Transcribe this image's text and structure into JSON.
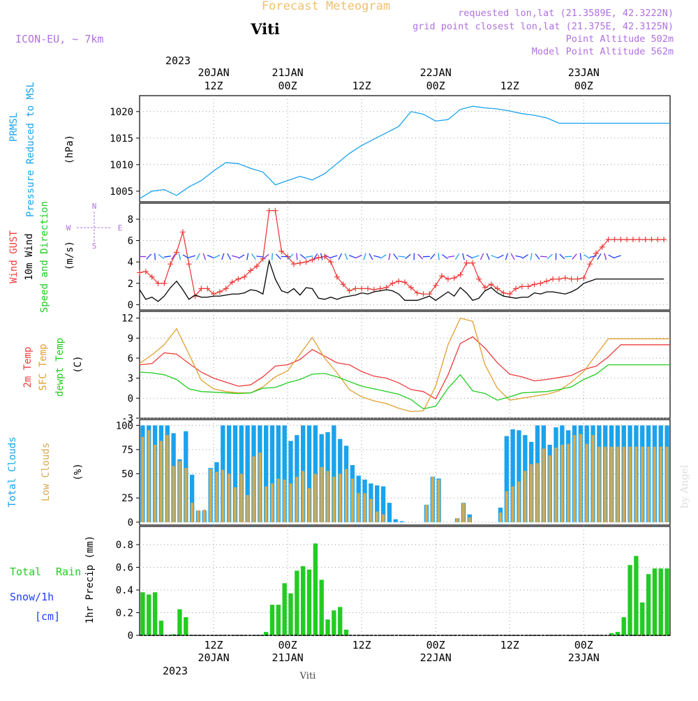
{
  "header": {
    "title": "Forecast Meteogram",
    "location": "Viti",
    "model": "ICON-EU, ~ 7km",
    "requested": "requested lon,lat (21.3589E, 42.3222N)",
    "grid_point": "grid point closest lon,lat (21.375E, 42.3125N)",
    "point_altitude": "Point Altitude 502m",
    "model_altitude": "Model Point Altitude 562m"
  },
  "time_axis": {
    "top_year": "2023",
    "bottom_year": "2023",
    "footer": "Viti",
    "watermark": "by Angel",
    "ticks": [
      {
        "h": 12,
        "line1": "12Z",
        "line2": "20JAN"
      },
      {
        "h": 24,
        "line1": "00Z",
        "line2": "21JAN"
      },
      {
        "h": 36,
        "line1": "12Z",
        "line2": ""
      },
      {
        "h": 48,
        "line1": "00Z",
        "line2": "22JAN"
      },
      {
        "h": 60,
        "line1": "12Z",
        "line2": ""
      },
      {
        "h": 72,
        "line1": "00Z",
        "line2": "23JAN"
      }
    ]
  },
  "compass": {
    "n": "N",
    "s": "S",
    "w": "W",
    "e": "E"
  },
  "colors": {
    "pressure": "#1aa3ec",
    "gust": "#ee3c3c",
    "wind": "#000000",
    "arrows": "#1e3cff",
    "temp2m": "#ee3c3c",
    "sfc": "#e0a030",
    "dewpt": "#22cc22",
    "total_clouds": "#1aa3ec",
    "low_clouds": "#d4aa50",
    "rain": "#22cc22",
    "snow": "#1e3cff",
    "grid": "#999999"
  },
  "chart_data": [
    {
      "type": "line",
      "panel": "pressure",
      "labels": [
        "PRMSL",
        "Pressure Reduced to MSL",
        "(hPa)"
      ],
      "ylim": [
        1003,
        1023
      ],
      "yticks": [
        1005,
        1010,
        1015,
        1020
      ],
      "x": [
        0,
        2,
        4,
        6,
        8,
        10,
        12,
        14,
        16,
        18,
        20,
        22,
        24,
        26,
        28,
        30,
        32,
        34,
        36,
        38,
        40,
        42,
        44,
        46,
        48,
        50,
        52,
        54,
        56,
        58,
        60,
        62,
        64,
        66,
        68,
        70,
        72,
        74,
        76,
        78,
        80,
        82,
        84,
        86
      ],
      "series": [
        {
          "values": [
            1003.6,
            1005.0,
            1005.3,
            1004.2,
            1005.8,
            1007.0,
            1008.8,
            1010.4,
            1010.2,
            1009.3,
            1008.6,
            1006.2,
            1007.0,
            1007.8,
            1007.1,
            1008.3,
            1010.2,
            1012.1,
            1013.6,
            1014.8,
            1016.0,
            1017.2,
            1020.0,
            1019.5,
            1018.2,
            1018.5,
            1020.4,
            1021.0,
            1020.7,
            1020.5,
            1020.1,
            1019.6,
            1019.3,
            1018.8,
            1017.8,
            1017.8,
            1017.8,
            1017.8,
            1017.8,
            1017.8,
            1017.8,
            1017.8,
            1017.8,
            1017.8
          ]
        }
      ]
    },
    {
      "type": "line",
      "panel": "wind",
      "labels": [
        "Wind GUST",
        "10m Wind",
        "Speed and Direction",
        "(m/s)"
      ],
      "ylim": [
        -0.5,
        9.5
      ],
      "yticks": [
        0,
        2,
        4,
        6,
        8
      ],
      "x": [
        0,
        1,
        2,
        3,
        4,
        5,
        6,
        7,
        8,
        9,
        10,
        11,
        12,
        13,
        14,
        15,
        16,
        17,
        18,
        19,
        20,
        21,
        22,
        23,
        24,
        25,
        26,
        27,
        28,
        29,
        30,
        31,
        32,
        33,
        34,
        35,
        36,
        37,
        38,
        39,
        40,
        41,
        42,
        43,
        44,
        45,
        46,
        47,
        48,
        49,
        50,
        51,
        52,
        53,
        54,
        55,
        56,
        57,
        58,
        59,
        60,
        61,
        62,
        63,
        64,
        65,
        66,
        67,
        68,
        69,
        70,
        71,
        72,
        73,
        74,
        75,
        76,
        77,
        78,
        79,
        80,
        81,
        82,
        83,
        84,
        85
      ],
      "series": [
        {
          "name": "Wind GUST",
          "values": [
            3.0,
            3.1,
            2.6,
            2.0,
            2.0,
            3.8,
            4.9,
            6.8,
            3.8,
            0.8,
            1.5,
            1.5,
            1.0,
            1.2,
            1.5,
            2.1,
            2.4,
            2.6,
            3.2,
            3.6,
            4.3,
            8.8,
            8.8,
            5.0,
            4.5,
            3.8,
            3.9,
            4.0,
            4.2,
            4.4,
            4.5,
            4.0,
            2.6,
            1.9,
            1.3,
            1.5,
            1.5,
            1.5,
            1.4,
            1.5,
            1.6,
            2.0,
            2.2,
            2.1,
            1.6,
            1.1,
            1.0,
            1.0,
            1.8,
            2.7,
            2.4,
            2.5,
            2.8,
            3.9,
            3.9,
            2.4,
            1.6,
            1.9,
            1.5,
            1.1,
            1.0,
            1.5,
            1.7,
            1.7,
            1.9,
            2.0,
            2.2,
            2.4,
            2.4,
            2.5,
            2.4,
            2.4,
            2.5,
            3.8,
            4.8,
            5.4,
            6.1,
            6.1,
            6.1,
            6.1,
            6.1,
            6.1,
            6.1,
            6.1,
            6.1,
            6.1
          ]
        },
        {
          "name": "10m Wind",
          "values": [
            1.4,
            0.5,
            0.7,
            0.3,
            0.8,
            1.6,
            2.2,
            1.4,
            0.5,
            0.9,
            0.7,
            0.7,
            0.8,
            0.8,
            0.9,
            1.0,
            1.0,
            1.1,
            1.4,
            1.3,
            1.0,
            4.1,
            2.4,
            1.3,
            1.1,
            1.5,
            0.9,
            1.6,
            1.5,
            0.6,
            0.5,
            0.7,
            0.5,
            0.7,
            0.8,
            0.9,
            1.1,
            1.0,
            1.2,
            1.3,
            1.4,
            1.3,
            1.0,
            0.4,
            0.4,
            0.4,
            0.6,
            0.8,
            0.4,
            0.8,
            1.2,
            0.8,
            1.6,
            1.1,
            0.4,
            0.6,
            1.3,
            1.6,
            1.1,
            0.8,
            0.7,
            0.6,
            0.7,
            0.7,
            1.1,
            1.0,
            1.2,
            1.2,
            1.1,
            1.0,
            1.2,
            1.5,
            2.0,
            2.2,
            2.4,
            2.4,
            2.4,
            2.4,
            2.4,
            2.4,
            2.4,
            2.4,
            2.4,
            2.4,
            2.4,
            2.4
          ]
        }
      ]
    },
    {
      "type": "line",
      "panel": "temperature",
      "labels": [
        "2m Temp",
        "SFC Temp",
        "dewpt Temp",
        "(C)"
      ],
      "ylim": [
        -3,
        13
      ],
      "yticks": [
        -3,
        0,
        3,
        6,
        9,
        12
      ],
      "x": [
        0,
        2,
        4,
        6,
        8,
        10,
        12,
        14,
        16,
        18,
        20,
        22,
        24,
        26,
        28,
        30,
        32,
        34,
        36,
        38,
        40,
        42,
        44,
        46,
        48,
        50,
        52,
        54,
        56,
        58,
        60,
        62,
        64,
        66,
        68,
        70,
        72,
        74,
        76,
        78,
        80,
        82,
        84,
        86
      ],
      "series": [
        {
          "name": "2m Temp",
          "values": [
            5.0,
            5.2,
            6.8,
            6.6,
            5.2,
            3.9,
            3.0,
            2.4,
            1.8,
            2.0,
            3.2,
            4.8,
            5.0,
            5.8,
            7.3,
            6.3,
            5.3,
            5.0,
            4.0,
            3.3,
            3.0,
            2.3,
            1.3,
            1.0,
            -0.1,
            3.5,
            8.2,
            9.2,
            7.5,
            5.3,
            3.6,
            3.2,
            2.6,
            2.8,
            3.1,
            3.4,
            4.3,
            4.8,
            6.2,
            8.0,
            8.0,
            8.0,
            8.0,
            8.0
          ]
        },
        {
          "name": "SFC Temp",
          "values": [
            5.2,
            6.5,
            8.0,
            10.4,
            6.6,
            2.7,
            1.4,
            1.0,
            0.8,
            0.8,
            1.7,
            3.2,
            4.1,
            6.6,
            9.1,
            6.0,
            3.8,
            1.3,
            0.2,
            -0.4,
            -0.8,
            -1.5,
            -2.0,
            -1.9,
            1.8,
            8.0,
            12.0,
            11.5,
            5.0,
            1.5,
            -0.3,
            0.0,
            0.3,
            0.6,
            1.1,
            2.4,
            4.0,
            6.5,
            8.9,
            8.9,
            8.9,
            8.9,
            8.9,
            8.9
          ]
        },
        {
          "name": "dewpt Temp",
          "values": [
            3.9,
            3.8,
            3.5,
            2.8,
            1.4,
            1.0,
            0.9,
            0.8,
            0.7,
            0.8,
            1.5,
            1.6,
            2.3,
            2.8,
            3.6,
            3.7,
            3.2,
            2.5,
            1.8,
            1.4,
            1.0,
            0.6,
            -0.2,
            -1.6,
            -1.2,
            1.5,
            3.5,
            1.1,
            0.7,
            -0.3,
            0.2,
            0.8,
            0.9,
            1.0,
            1.3,
            1.7,
            2.8,
            3.6,
            5.0,
            5.0,
            5.0,
            5.0,
            5.0,
            5.0
          ]
        }
      ]
    },
    {
      "type": "bar",
      "panel": "clouds",
      "labels": [
        "Total Clouds",
        "Low Clouds",
        "(%)"
      ],
      "ylim": [
        -3,
        106
      ],
      "yticks": [
        0,
        25,
        50,
        75,
        100
      ],
      "x": [
        0,
        1,
        2,
        3,
        4,
        5,
        6,
        7,
        8,
        9,
        10,
        11,
        12,
        13,
        14,
        15,
        16,
        17,
        18,
        19,
        20,
        21,
        22,
        23,
        24,
        25,
        26,
        27,
        28,
        29,
        30,
        31,
        32,
        33,
        34,
        35,
        36,
        37,
        38,
        39,
        40,
        41,
        42,
        43,
        44,
        45,
        46,
        47,
        48,
        49,
        50,
        51,
        52,
        53,
        54,
        55,
        56,
        57,
        58,
        59,
        60,
        61,
        62,
        63,
        64,
        65,
        66,
        67,
        68,
        69,
        70,
        71,
        72,
        73,
        74,
        75,
        76,
        77,
        78,
        79,
        80,
        81,
        82,
        83,
        84,
        85
      ],
      "series": [
        {
          "name": "Total Clouds",
          "values": [
            100,
            100,
            100,
            100,
            100,
            92,
            65,
            94,
            49,
            12,
            12,
            56,
            62,
            100,
            100,
            100,
            100,
            100,
            100,
            100,
            100,
            100,
            100,
            100,
            84,
            90,
            100,
            100,
            100,
            91,
            93,
            100,
            86,
            79,
            59,
            48,
            44,
            40,
            38,
            37,
            20,
            3,
            1,
            0,
            0,
            0,
            18,
            47,
            45,
            0,
            0,
            4,
            20,
            8,
            0,
            0,
            0,
            0,
            15,
            89,
            96,
            95,
            90,
            83,
            100,
            100,
            80,
            98,
            100,
            95,
            100,
            100,
            100,
            100,
            100,
            100,
            100,
            100,
            100,
            100,
            100,
            100,
            100,
            100,
            100,
            100
          ]
        },
        {
          "name": "Low Clouds",
          "values": [
            88,
            95,
            80,
            84,
            90,
            58,
            63,
            56,
            20,
            12,
            13,
            55,
            52,
            54,
            50,
            36,
            50,
            28,
            68,
            72,
            37,
            40,
            45,
            44,
            40,
            47,
            53,
            35,
            50,
            57,
            53,
            47,
            50,
            55,
            45,
            30,
            30,
            24,
            11,
            8,
            0,
            0,
            0,
            0,
            0,
            0,
            18,
            47,
            44,
            0,
            0,
            4,
            20,
            5,
            0,
            0,
            0,
            0,
            10,
            32,
            37,
            42,
            53,
            60,
            61,
            76,
            69,
            77,
            80,
            81,
            90,
            91,
            81,
            90,
            78,
            78,
            78,
            78,
            78,
            78,
            78,
            78,
            78,
            78,
            78,
            78
          ]
        }
      ]
    },
    {
      "type": "bar",
      "panel": "precipitation",
      "labels": [
        "Total",
        "Rain",
        "Snow/1h",
        "[cm]",
        "1hr Precip (mm)"
      ],
      "ylim": [
        0,
        0.96
      ],
      "yticks": [
        0,
        0.2,
        0.4,
        0.6,
        0.8
      ],
      "ytick_labels": [
        "0",
        "0.2",
        "0.4",
        "0.6",
        "0.8"
      ],
      "x": [
        0,
        1,
        2,
        3,
        4,
        5,
        6,
        7,
        8,
        9,
        10,
        11,
        12,
        13,
        14,
        15,
        16,
        17,
        18,
        19,
        20,
        21,
        22,
        23,
        24,
        25,
        26,
        27,
        28,
        29,
        30,
        31,
        32,
        33,
        34,
        35,
        36,
        37,
        38,
        39,
        40,
        41,
        42,
        43,
        44,
        45,
        46,
        47,
        48,
        49,
        50,
        51,
        52,
        53,
        54,
        55,
        56,
        57,
        58,
        59,
        60,
        61,
        62,
        63,
        64,
        65,
        66,
        67,
        68,
        69,
        70,
        71,
        72,
        73,
        74,
        75,
        76,
        77,
        78,
        79,
        80,
        81,
        82,
        83,
        84,
        85
      ],
      "series": [
        {
          "name": "Total Rain",
          "values": [
            0.38,
            0.36,
            0.38,
            0.13,
            0,
            0.01,
            0.23,
            0.16,
            0,
            0,
            0,
            0,
            0,
            0,
            0,
            0,
            0,
            0,
            0,
            0,
            0.03,
            0.27,
            0.27,
            0.46,
            0.37,
            0.57,
            0.61,
            0.58,
            0.81,
            0.49,
            0.14,
            0.22,
            0.25,
            0.05,
            0,
            0,
            0,
            0,
            0,
            0,
            0,
            0,
            0,
            0,
            0,
            0,
            0,
            0,
            0,
            0,
            0,
            0,
            0,
            0,
            0,
            0,
            0,
            0,
            0,
            0,
            0,
            0,
            0,
            0,
            0,
            0,
            0,
            0,
            0,
            0,
            0,
            0,
            0,
            0,
            0,
            0,
            0.02,
            0.03,
            0.16,
            0.62,
            0.7,
            0.29,
            0.54,
            0.59,
            0.59,
            0.59
          ]
        },
        {
          "name": "Snow/1h",
          "values": [
            0,
            0,
            0,
            0,
            0,
            0,
            0,
            0,
            0,
            0,
            0,
            0,
            0,
            0,
            0,
            0,
            0,
            0,
            0,
            0,
            0,
            0,
            0,
            0,
            0,
            0,
            0,
            0,
            0,
            0,
            0,
            0,
            0,
            0,
            0,
            0,
            0,
            0,
            0,
            0,
            0,
            0,
            0,
            0,
            0,
            0,
            0,
            0,
            0,
            0,
            0,
            0,
            0,
            0,
            0,
            0,
            0,
            0,
            0,
            0,
            0,
            0,
            0,
            0,
            0,
            0,
            0,
            0,
            0,
            0,
            0,
            0,
            0,
            0,
            0,
            0,
            0,
            0,
            0,
            0,
            0,
            0,
            0,
            0,
            0,
            0
          ]
        }
      ]
    }
  ]
}
